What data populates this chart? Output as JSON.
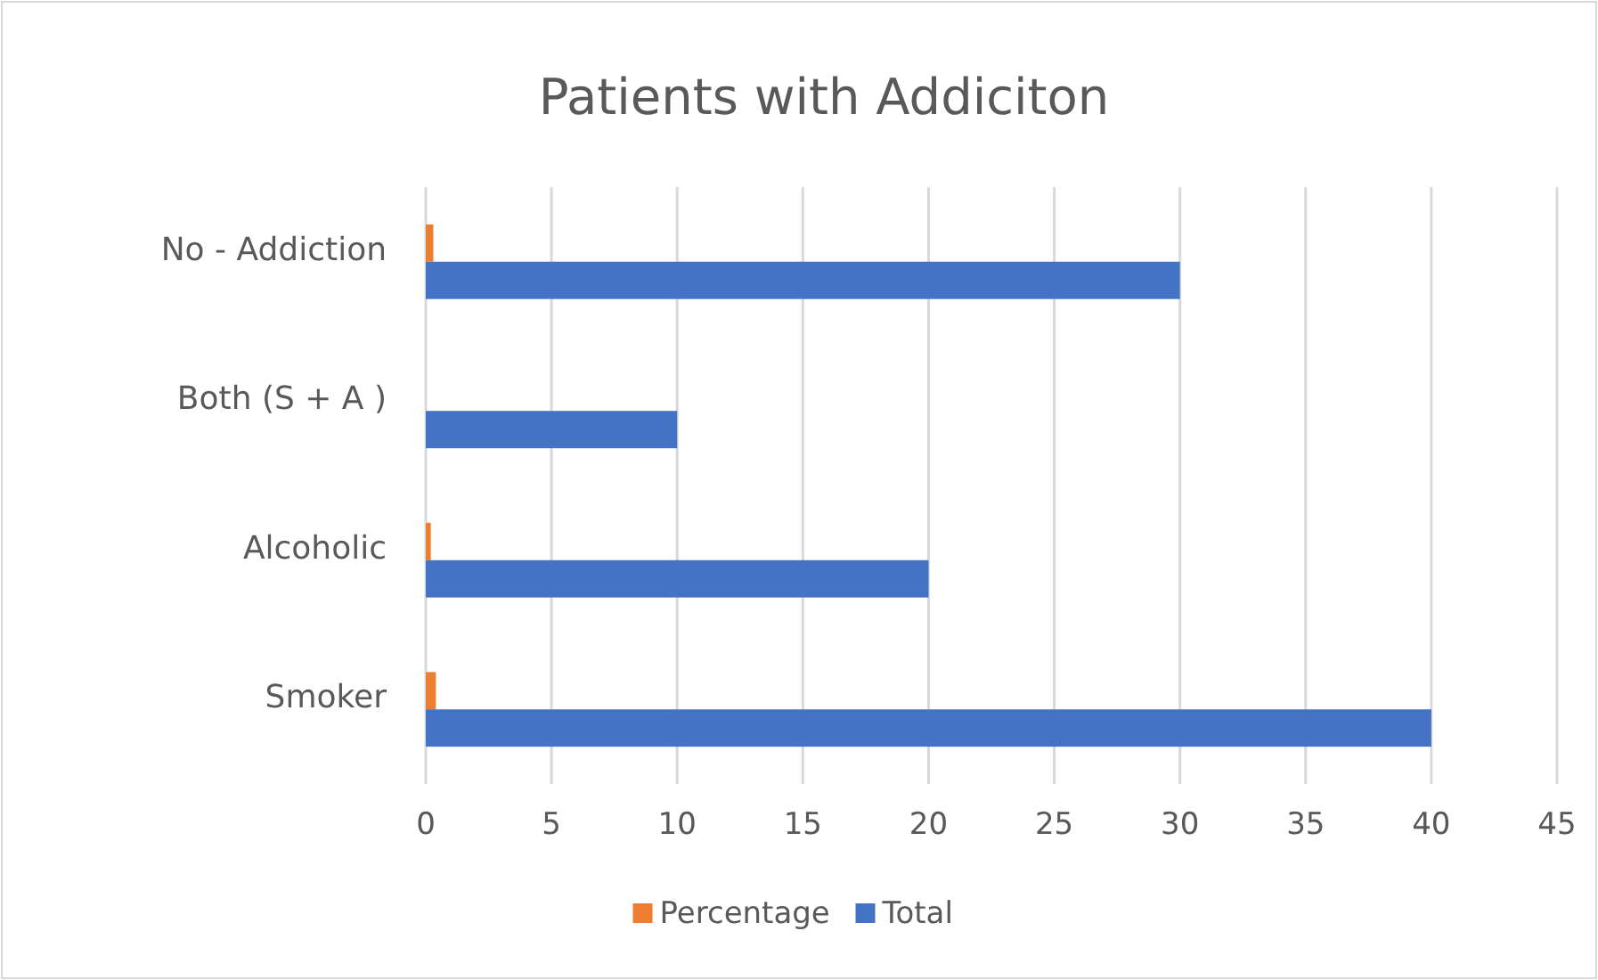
{
  "chart_data": {
    "type": "bar",
    "orientation": "horizontal",
    "title": "Patients with Addiciton",
    "categories": [
      "No - Addiction",
      "Both (S + A )",
      "Alcoholic",
      "Smoker"
    ],
    "series": [
      {
        "name": "Percentage",
        "color": "#ed7d31",
        "values": [
          0.3,
          0,
          0.2,
          0.4
        ]
      },
      {
        "name": "Total",
        "color": "#4472c4",
        "values": [
          30,
          10,
          20,
          40
        ]
      }
    ],
    "xlim": [
      0,
      45
    ],
    "xticks": [
      0,
      5,
      10,
      15,
      20,
      25,
      30,
      35,
      40,
      45
    ],
    "grid": "x",
    "legend": "bottom"
  }
}
